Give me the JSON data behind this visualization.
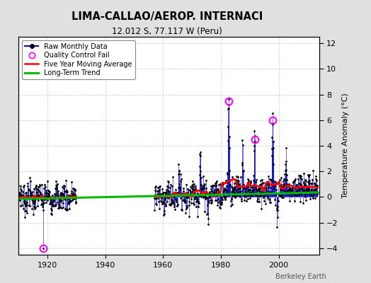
{
  "title": "LIMA-CALLAO/AEROP. INTERNACI",
  "subtitle": "12.012 S, 77.117 W (Peru)",
  "ylabel": "Temperature Anomaly (°C)",
  "attribution": "Berkeley Earth",
  "xlim": [
    1910,
    2014
  ],
  "ylim": [
    -4.5,
    12.5
  ],
  "yticks": [
    -4,
    -2,
    0,
    2,
    4,
    6,
    8,
    10,
    12
  ],
  "xticks": [
    1920,
    1940,
    1960,
    1980,
    2000
  ],
  "raw_color": "#0000cc",
  "moving_avg_color": "#ff0000",
  "trend_color": "#00bb00",
  "qc_fail_color": "#ff00ff",
  "bg_color": "#e0e0e0",
  "plot_bg_color": "#ffffff",
  "grid_color": "#bbbbbb"
}
